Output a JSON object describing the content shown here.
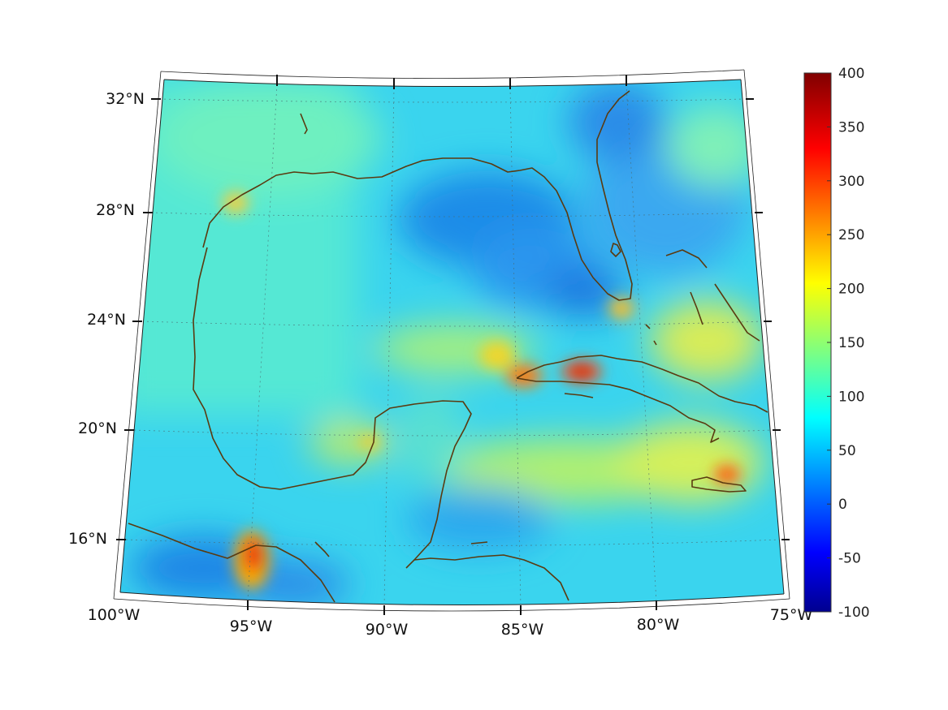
{
  "map": {
    "latitude_labels": [
      "32°N",
      "28°N",
      "24°N",
      "20°N",
      "16°N"
    ],
    "longitude_labels": [
      "100°W",
      "95°W",
      "90°W",
      "85°W",
      "80°W",
      "75°W"
    ],
    "lat_values": [
      32,
      28,
      24,
      20,
      16
    ],
    "lon_values": [
      -100,
      -95,
      -90,
      -85,
      -80,
      -75
    ],
    "lon_range": [
      -100,
      -75
    ],
    "lat_range": [
      14,
      33
    ],
    "grid": "dotted",
    "coastline_color": "#5a3a10",
    "colormap": "jet"
  },
  "colorbar": {
    "ticks": [
      "400",
      "350",
      "300",
      "250",
      "200",
      "150",
      "100",
      "50",
      "0",
      "-50",
      "-100"
    ],
    "min": -100,
    "max": 400
  }
}
